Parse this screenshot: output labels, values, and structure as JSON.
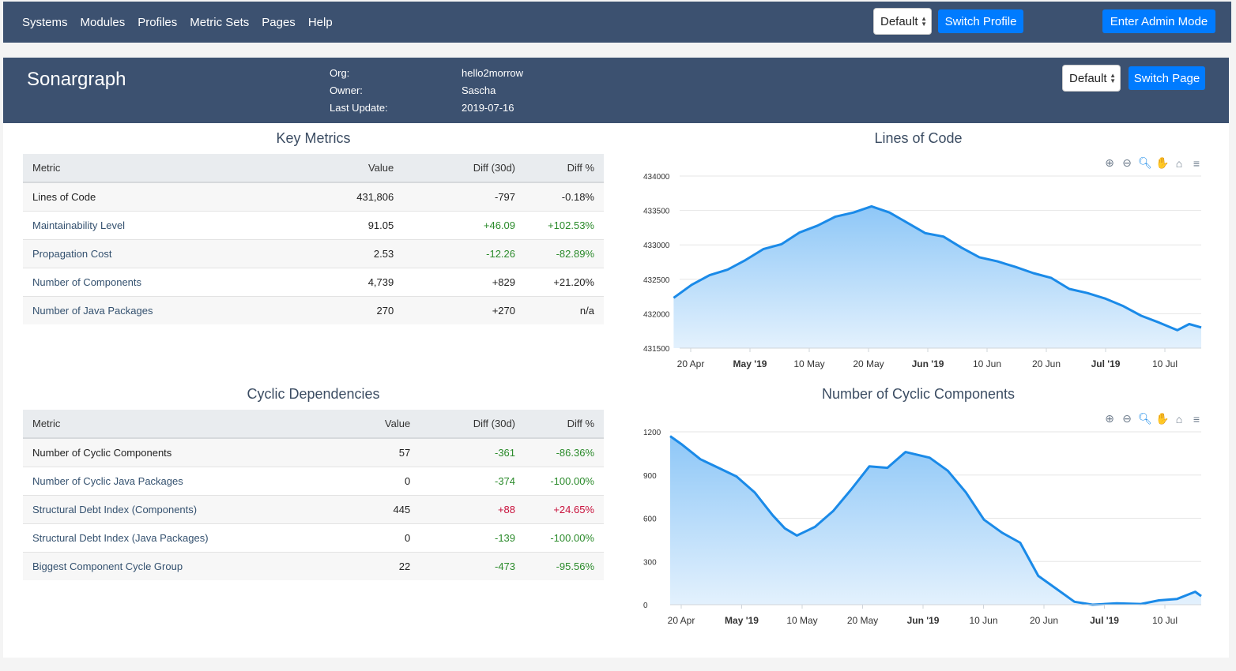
{
  "nav": {
    "items": [
      "Systems",
      "Modules",
      "Profiles",
      "Metric Sets",
      "Pages",
      "Help"
    ],
    "profile_select": "Default",
    "switch_profile": "Switch Profile",
    "admin": "Enter Admin Mode"
  },
  "banner": {
    "title": "Sonargraph",
    "org_label": "Org:",
    "org": "hello2morrow",
    "owner_label": "Owner:",
    "owner": "Sascha",
    "update_label": "Last Update:",
    "update": "2019-07-16",
    "page_select": "Default",
    "switch_page": "Switch Page"
  },
  "key_metrics": {
    "title": "Key Metrics",
    "headers": [
      "Metric",
      "Value",
      "Diff (30d)",
      "Diff %"
    ],
    "rows": [
      {
        "name": "Lines of Code",
        "value": "431,806",
        "diff": "-797",
        "pct": "-0.18%",
        "tone": "dark",
        "diff_tone": "dark"
      },
      {
        "name": "Maintainability Level",
        "value": "91.05",
        "diff": "+46.09",
        "pct": "+102.53%",
        "tone": "link",
        "diff_tone": "pos"
      },
      {
        "name": "Propagation Cost",
        "value": "2.53",
        "diff": "-12.26",
        "pct": "-82.89%",
        "tone": "link",
        "diff_tone": "pos"
      },
      {
        "name": "Number of Components",
        "value": "4,739",
        "diff": "+829",
        "pct": "+21.20%",
        "tone": "link",
        "diff_tone": "dark"
      },
      {
        "name": "Number of Java Packages",
        "value": "270",
        "diff": "+270",
        "pct": "n/a",
        "tone": "link",
        "diff_tone": "dark"
      }
    ]
  },
  "cyclic": {
    "title": "Cyclic Dependencies",
    "headers": [
      "Metric",
      "Value",
      "Diff (30d)",
      "Diff %"
    ],
    "rows": [
      {
        "name": "Number of Cyclic Components",
        "value": "57",
        "diff": "-361",
        "pct": "-86.36%",
        "tone": "dark",
        "diff_tone": "pos"
      },
      {
        "name": "Number of Cyclic Java Packages",
        "value": "0",
        "diff": "-374",
        "pct": "-100.00%",
        "tone": "link",
        "diff_tone": "pos"
      },
      {
        "name": "Structural Debt Index (Components)",
        "value": "445",
        "diff": "+88",
        "pct": "+24.65%",
        "tone": "link",
        "diff_tone": "neg"
      },
      {
        "name": "Structural Debt Index (Java Packages)",
        "value": "0",
        "diff": "-139",
        "pct": "-100.00%",
        "tone": "link",
        "diff_tone": "pos"
      },
      {
        "name": "Biggest Component Cycle Group",
        "value": "22",
        "diff": "-473",
        "pct": "-95.56%",
        "tone": "link",
        "diff_tone": "pos"
      }
    ]
  },
  "chart_data": [
    {
      "type": "area",
      "title": "Lines of Code",
      "x_range": [
        "2019-04-20",
        "2019-07-16"
      ],
      "ylim": [
        431500,
        434000
      ],
      "yticks": [
        "434000",
        "433500",
        "433000",
        "432500",
        "432000",
        "431500"
      ],
      "xticks": [
        {
          "label": "20 Apr",
          "bold": false
        },
        {
          "label": "May '19",
          "bold": true
        },
        {
          "label": "10 May",
          "bold": false
        },
        {
          "label": "20 May",
          "bold": false
        },
        {
          "label": "Jun '19",
          "bold": true
        },
        {
          "label": "10 Jun",
          "bold": false
        },
        {
          "label": "20 Jun",
          "bold": false
        },
        {
          "label": "Jul '19",
          "bold": true
        },
        {
          "label": "10 Jul",
          "bold": false
        }
      ],
      "x": [
        "2019-04-19",
        "2019-04-22",
        "2019-04-25",
        "2019-04-28",
        "2019-05-01",
        "2019-05-04",
        "2019-05-07",
        "2019-05-10",
        "2019-05-13",
        "2019-05-16",
        "2019-05-19",
        "2019-05-22",
        "2019-05-25",
        "2019-05-28",
        "2019-05-31",
        "2019-06-03",
        "2019-06-06",
        "2019-06-09",
        "2019-06-12",
        "2019-06-15",
        "2019-06-18",
        "2019-06-21",
        "2019-06-24",
        "2019-06-27",
        "2019-06-30",
        "2019-07-03",
        "2019-07-06",
        "2019-07-09",
        "2019-07-12",
        "2019-07-14",
        "2019-07-16"
      ],
      "values": [
        432230,
        432420,
        432560,
        432640,
        432780,
        432940,
        433010,
        433180,
        433280,
        433410,
        433470,
        433560,
        433470,
        433320,
        433170,
        433120,
        432960,
        432820,
        432760,
        432680,
        432590,
        432520,
        432360,
        432300,
        432220,
        432110,
        431970,
        431870,
        431760,
        431850,
        431800
      ],
      "grid": true
    },
    {
      "type": "area",
      "title": "Number of Cyclic Components",
      "x_range": [
        "2019-04-19",
        "2019-07-16"
      ],
      "ylim": [
        0,
        1200
      ],
      "yticks": [
        "1200",
        "900",
        "600",
        "300",
        "0"
      ],
      "xticks": [
        {
          "label": "20 Apr",
          "bold": false
        },
        {
          "label": "May '19",
          "bold": true
        },
        {
          "label": "10 May",
          "bold": false
        },
        {
          "label": "20 May",
          "bold": false
        },
        {
          "label": "Jun '19",
          "bold": true
        },
        {
          "label": "10 Jun",
          "bold": false
        },
        {
          "label": "20 Jun",
          "bold": false
        },
        {
          "label": "Jul '19",
          "bold": true
        },
        {
          "label": "10 Jul",
          "bold": false
        }
      ],
      "x": [
        "2019-04-19",
        "2019-04-21",
        "2019-04-24",
        "2019-04-27",
        "2019-04-30",
        "2019-05-03",
        "2019-05-06",
        "2019-05-08",
        "2019-05-10",
        "2019-05-13",
        "2019-05-16",
        "2019-05-19",
        "2019-05-22",
        "2019-05-25",
        "2019-05-28",
        "2019-06-01",
        "2019-06-04",
        "2019-06-07",
        "2019-06-10",
        "2019-06-13",
        "2019-06-16",
        "2019-06-19",
        "2019-06-22",
        "2019-06-25",
        "2019-06-28",
        "2019-07-02",
        "2019-07-06",
        "2019-07-09",
        "2019-07-12",
        "2019-07-15",
        "2019-07-16"
      ],
      "values": [
        1170,
        1110,
        1010,
        950,
        890,
        780,
        620,
        530,
        480,
        540,
        650,
        800,
        960,
        950,
        1060,
        1020,
        930,
        780,
        590,
        500,
        430,
        200,
        110,
        20,
        0,
        10,
        5,
        30,
        40,
        90,
        60
      ],
      "grid": true
    }
  ],
  "icons": [
    "zoom-in-icon",
    "zoom-out-icon",
    "magnifier-icon",
    "hand-pan-icon",
    "home-icon",
    "menu-icon"
  ]
}
